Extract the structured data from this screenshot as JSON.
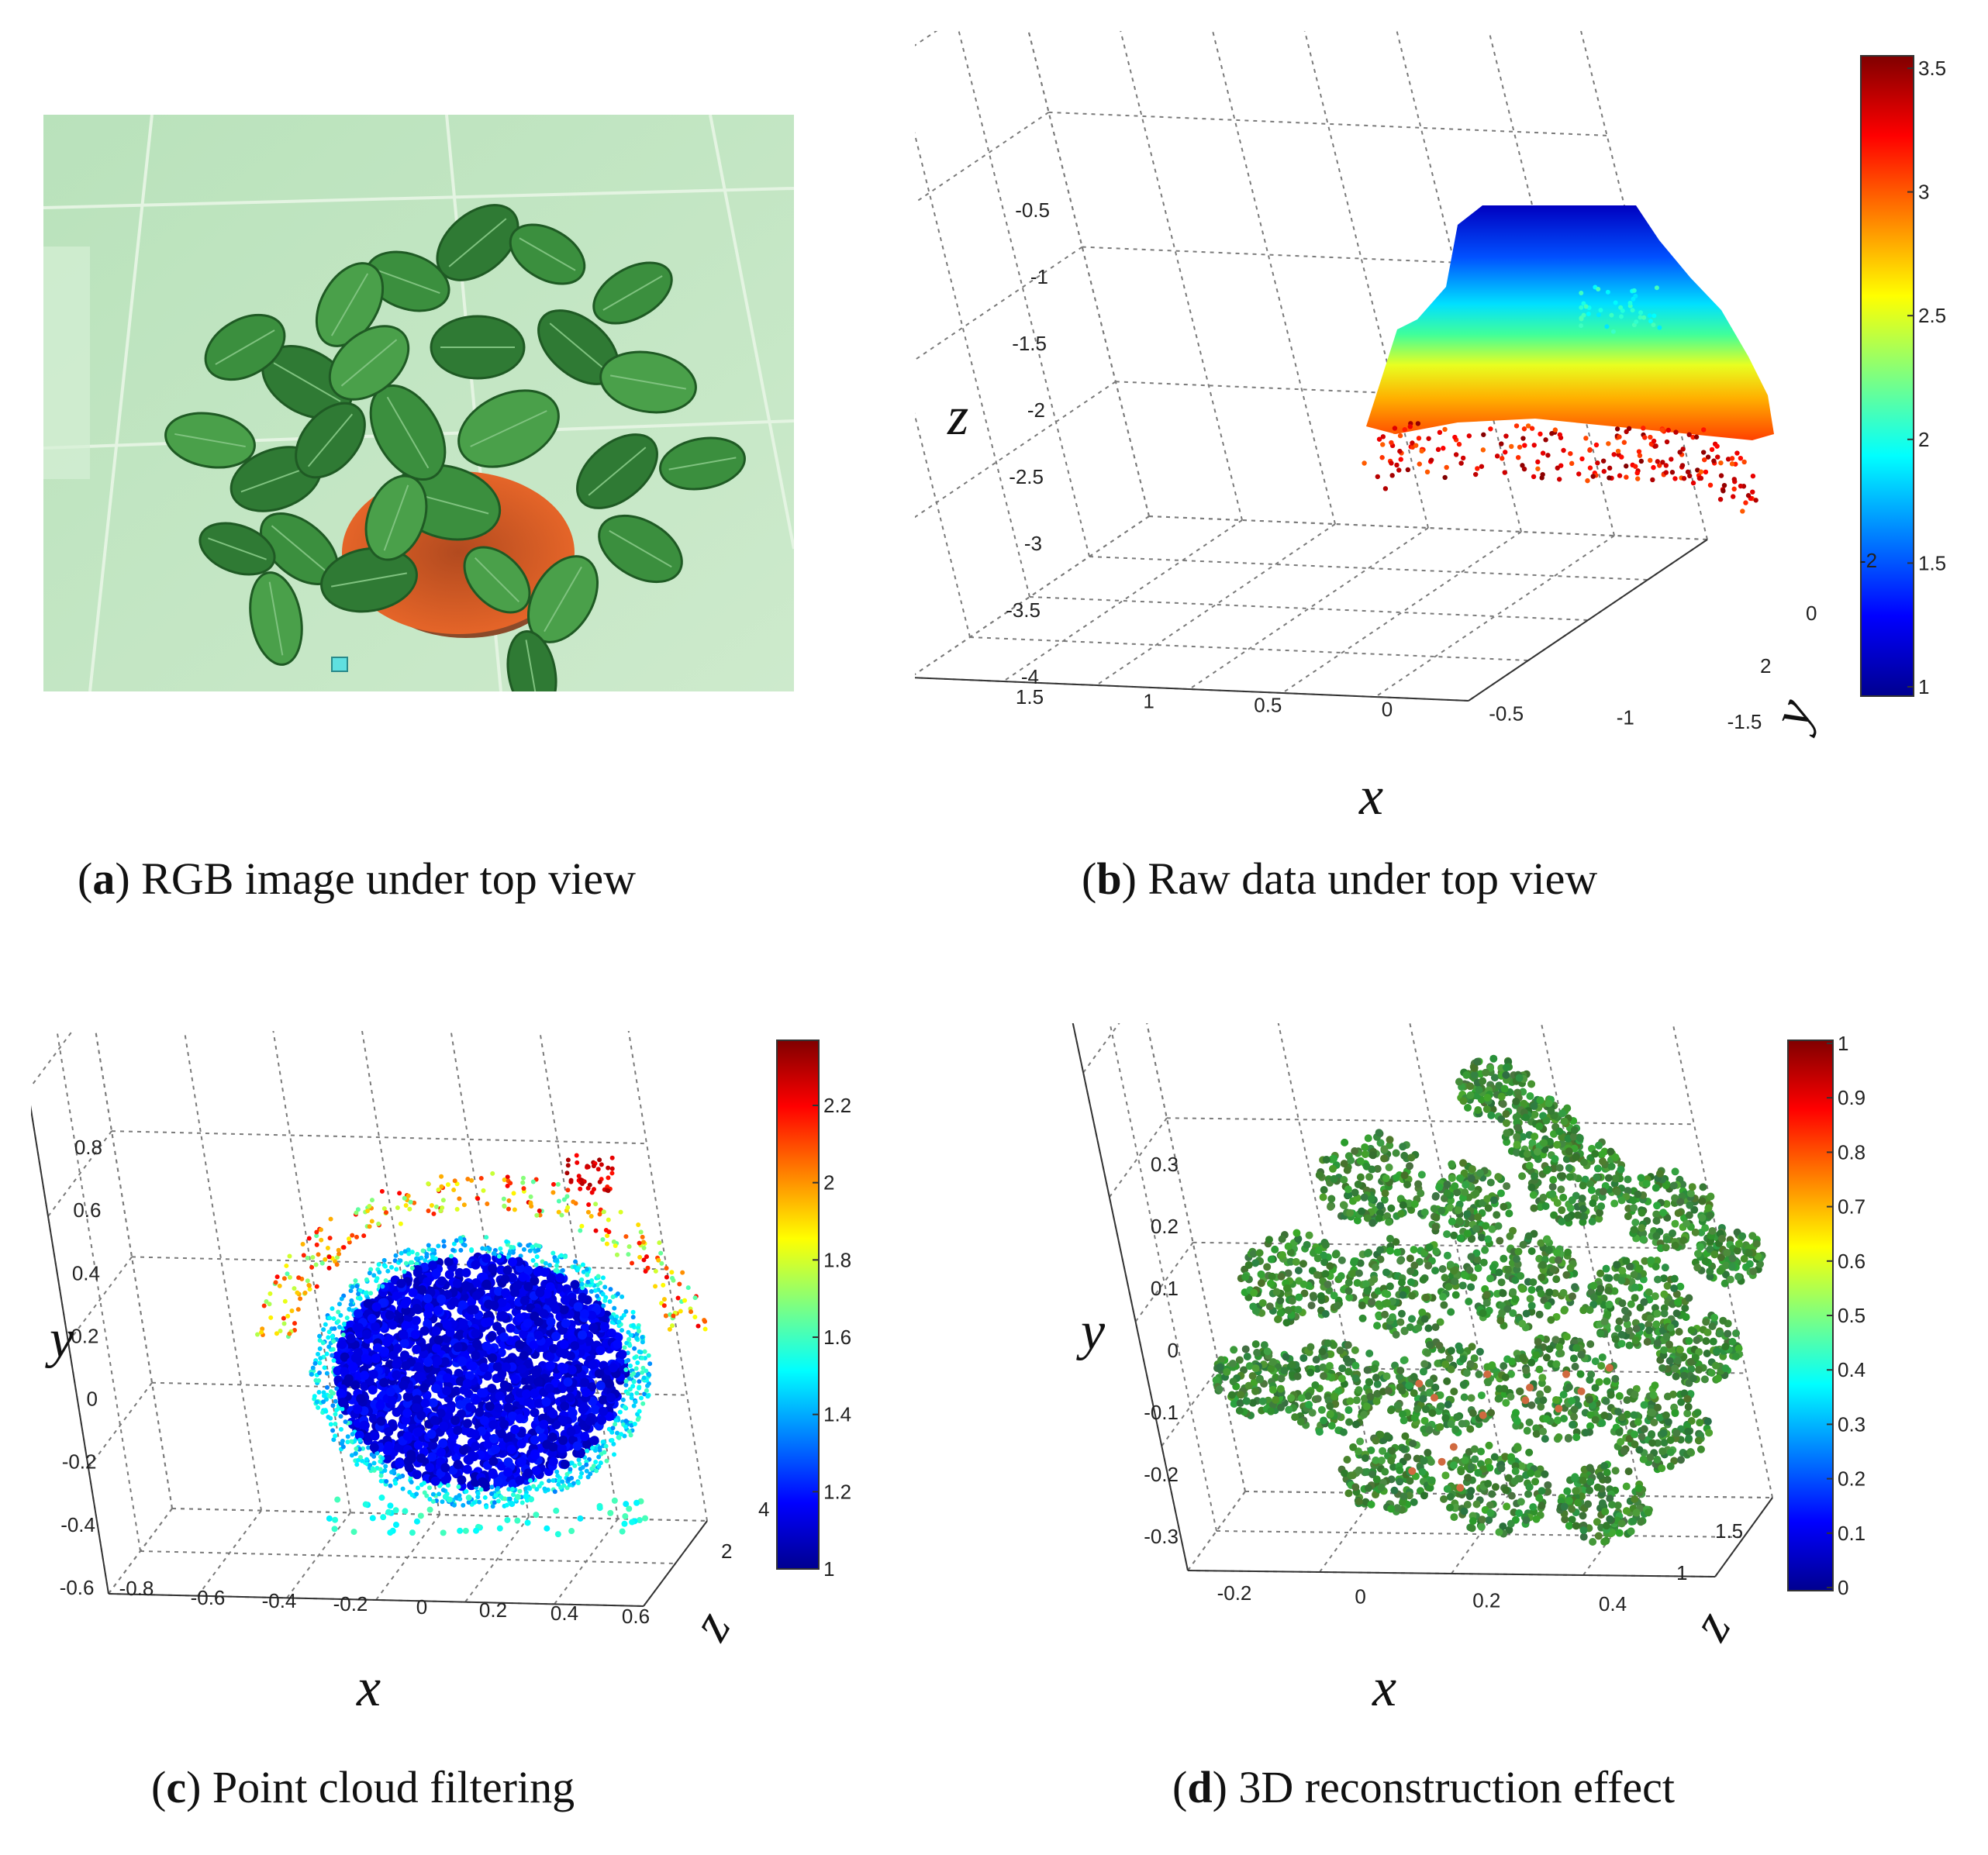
{
  "figure_captions": {
    "a": {
      "label": "a",
      "text": " RGB image under top view"
    },
    "b": {
      "label": "b",
      "text": " Raw data under top view"
    },
    "c": {
      "label": "c",
      "text": " Point cloud filtering"
    },
    "d": {
      "label": "d",
      "text": " 3D reconstruction effect"
    }
  },
  "chart_data": [
    {
      "panel": "b",
      "type": "scatter",
      "title": "Raw data under top view",
      "xlabel": "x",
      "ylabel": "y",
      "zlabel": "z",
      "x_ticks": [
        "1.5",
        "1",
        "0.5",
        "0",
        "-0.5",
        "-1",
        "-1.5"
      ],
      "y_ticks": [
        "-2",
        "0",
        "2"
      ],
      "z_ticks": [
        "-0.5",
        "-1",
        "-1.5",
        "-2",
        "-2.5",
        "-3",
        "-3.5",
        "-4"
      ],
      "xlim": [
        -1.5,
        1.5
      ],
      "ylim": [
        -2,
        2
      ],
      "zlim": [
        -4,
        -0.5
      ],
      "colorbar": {
        "min": 1,
        "max": 3.5,
        "ticks": [
          "3.5",
          "3",
          "2.5",
          "2",
          "1.5",
          "1"
        ],
        "colormap": "jet"
      },
      "point_cloud": "dome-shaped slab spanning z from about -0.6 (top, blue) to -2.8 (bottom, red)"
    },
    {
      "panel": "c",
      "type": "scatter",
      "title": "Point cloud filtering",
      "xlabel": "x",
      "ylabel": "y",
      "zlabel": "z",
      "x_ticks": [
        "-0.8",
        "-0.6",
        "-0.4",
        "-0.2",
        "0",
        "0.2",
        "0.4",
        "0.6"
      ],
      "y_ticks": [
        "0.8",
        "0.6",
        "0.4",
        "0.2",
        "0",
        "-0.2",
        "-0.4",
        "-0.6"
      ],
      "z_ticks": [
        "2",
        "4"
      ],
      "xlim": [
        -0.8,
        0.6
      ],
      "ylim": [
        -0.6,
        0.8
      ],
      "zlim": [
        0,
        4
      ],
      "colorbar": {
        "min": 1,
        "max": 2.3,
        "ticks": [
          "2.2",
          "2",
          "1.8",
          "1.6",
          "1.4",
          "1.2",
          "1"
        ],
        "colormap": "jet"
      },
      "point_cloud": "dense blue plant canopy centered near x=0, y=0 with sparse higher-valued outliers above"
    },
    {
      "panel": "d",
      "type": "scatter",
      "title": "3D reconstruction effect",
      "xlabel": "x",
      "ylabel": "y",
      "zlabel": "z",
      "x_ticks": [
        "-0.2",
        "0",
        "0.2",
        "0.4"
      ],
      "y_ticks": [
        "0.3",
        "0.2",
        "0.1",
        "0",
        "-0.1",
        "-0.2",
        "-0.3"
      ],
      "z_ticks": [
        "1",
        "1.5"
      ],
      "xlim": [
        -0.3,
        0.4
      ],
      "ylim": [
        -0.3,
        0.3
      ],
      "zlim": [
        1,
        1.5
      ],
      "colorbar": {
        "min": 0,
        "max": 1,
        "ticks": [
          "1",
          "0.9",
          "0.8",
          "0.7",
          "0.6",
          "0.5",
          "0.4",
          "0.3",
          "0.2",
          "0.1",
          "0"
        ],
        "colormap": "jet"
      },
      "point_cloud": "green RGB-colored reconstruction of the plant leaves"
    }
  ],
  "colors": {
    "photo_bg": "#c4e6c4",
    "leaf": "#3f8f3f",
    "leaf_dark": "#2c6e2c",
    "pot": "#ef6a2a",
    "grid": "#7a7a7a"
  }
}
